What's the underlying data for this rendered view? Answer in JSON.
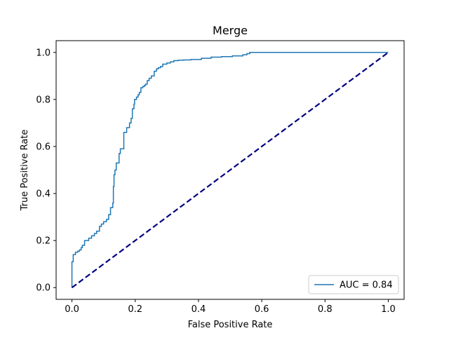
{
  "chart_data": {
    "type": "line",
    "title": "Merge",
    "xlabel": "False Positive Rate",
    "ylabel": "True Positive Rate",
    "xlim": [
      -0.05,
      1.05
    ],
    "ylim": [
      -0.05,
      1.05
    ],
    "xticks": [
      0.0,
      0.2,
      0.4,
      0.6,
      0.8,
      1.0
    ],
    "yticks": [
      0.0,
      0.2,
      0.4,
      0.6,
      0.8,
      1.0
    ],
    "xtick_labels": [
      "0.0",
      "0.2",
      "0.4",
      "0.6",
      "0.8",
      "1.0"
    ],
    "ytick_labels": [
      "0.0",
      "0.2",
      "0.4",
      "0.6",
      "0.8",
      "1.0"
    ],
    "grid": false,
    "legend_position": "lower-right",
    "series": [
      {
        "name": "AUC = 0.84",
        "color": "#1f77b4",
        "style": "solid",
        "x": [
          0.0,
          0.0,
          0.004,
          0.004,
          0.011,
          0.011,
          0.018,
          0.018,
          0.024,
          0.024,
          0.029,
          0.029,
          0.033,
          0.033,
          0.04,
          0.04,
          0.053,
          0.053,
          0.062,
          0.062,
          0.071,
          0.071,
          0.078,
          0.078,
          0.087,
          0.087,
          0.093,
          0.093,
          0.1,
          0.1,
          0.109,
          0.109,
          0.116,
          0.116,
          0.122,
          0.122,
          0.129,
          0.129,
          0.131,
          0.131,
          0.133,
          0.133,
          0.136,
          0.136,
          0.14,
          0.14,
          0.149,
          0.149,
          0.153,
          0.153,
          0.164,
          0.164,
          0.173,
          0.173,
          0.182,
          0.182,
          0.187,
          0.187,
          0.191,
          0.191,
          0.196,
          0.196,
          0.198,
          0.198,
          0.204,
          0.204,
          0.209,
          0.209,
          0.213,
          0.213,
          0.218,
          0.218,
          0.224,
          0.224,
          0.229,
          0.229,
          0.233,
          0.233,
          0.238,
          0.238,
          0.244,
          0.244,
          0.251,
          0.251,
          0.26,
          0.26,
          0.267,
          0.267,
          0.273,
          0.273,
          0.28,
          0.28,
          0.287,
          0.287,
          0.3,
          0.3,
          0.311,
          0.311,
          0.322,
          0.322,
          0.336,
          0.336,
          0.353,
          0.353,
          0.376,
          0.376,
          0.409,
          0.409,
          0.44,
          0.44,
          0.473,
          0.473,
          0.507,
          0.507,
          0.54,
          0.54,
          0.553,
          0.553,
          0.562,
          0.562,
          1.0
        ],
        "y": [
          0.0,
          0.11,
          0.11,
          0.14,
          0.14,
          0.15,
          0.15,
          0.155,
          0.155,
          0.16,
          0.16,
          0.17,
          0.17,
          0.18,
          0.18,
          0.2,
          0.2,
          0.21,
          0.21,
          0.22,
          0.22,
          0.23,
          0.23,
          0.24,
          0.24,
          0.26,
          0.26,
          0.27,
          0.27,
          0.28,
          0.28,
          0.29,
          0.29,
          0.31,
          0.31,
          0.34,
          0.34,
          0.36,
          0.36,
          0.43,
          0.43,
          0.48,
          0.48,
          0.5,
          0.5,
          0.53,
          0.53,
          0.57,
          0.57,
          0.59,
          0.59,
          0.66,
          0.66,
          0.68,
          0.68,
          0.7,
          0.7,
          0.72,
          0.72,
          0.76,
          0.76,
          0.78,
          0.78,
          0.8,
          0.8,
          0.81,
          0.81,
          0.82,
          0.82,
          0.83,
          0.83,
          0.85,
          0.85,
          0.855,
          0.855,
          0.86,
          0.86,
          0.865,
          0.865,
          0.88,
          0.88,
          0.89,
          0.89,
          0.9,
          0.9,
          0.92,
          0.92,
          0.93,
          0.93,
          0.935,
          0.935,
          0.94,
          0.94,
          0.95,
          0.95,
          0.955,
          0.955,
          0.96,
          0.96,
          0.965,
          0.965,
          0.967,
          0.967,
          0.968,
          0.968,
          0.97,
          0.97,
          0.975,
          0.975,
          0.98,
          0.98,
          0.982,
          0.982,
          0.985,
          0.985,
          0.99,
          0.99,
          0.995,
          0.995,
          1.0,
          1.0
        ]
      },
      {
        "name": "",
        "color": "#000080",
        "style": "dashed",
        "x": [
          0.0,
          1.0
        ],
        "y": [
          0.0,
          1.0
        ]
      }
    ],
    "legend": [
      {
        "label": "AUC = 0.84",
        "color": "#1f77b4"
      }
    ]
  }
}
